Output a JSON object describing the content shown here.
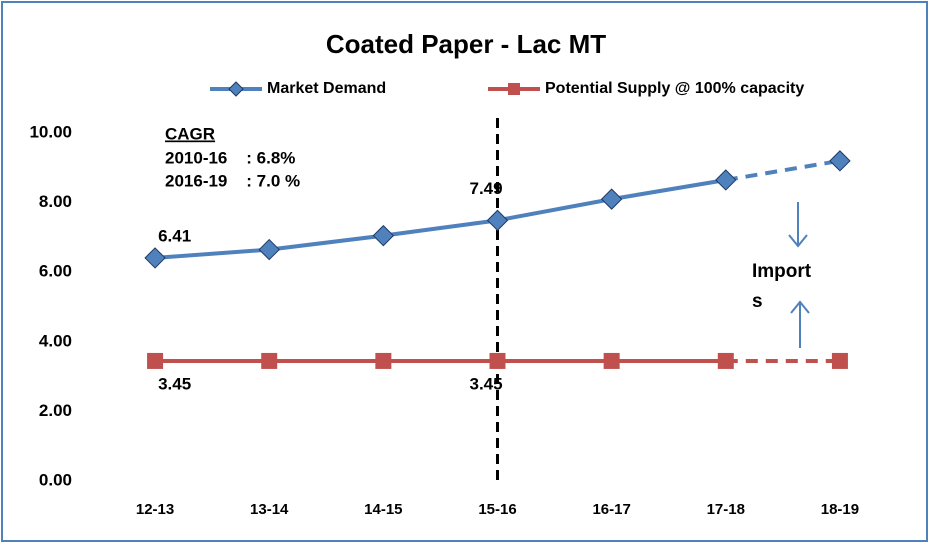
{
  "chart_data": {
    "type": "line",
    "title": "Coated Paper - Lac MT",
    "categories": [
      "12-13",
      "13-14",
      "14-15",
      "15-16",
      "16-17",
      "17-18",
      "18-19"
    ],
    "series": [
      {
        "name": "Market Demand",
        "color": "#4f81bd",
        "marker": "diamond",
        "values": [
          6.41,
          6.65,
          7.05,
          7.49,
          8.1,
          8.65,
          9.2
        ]
      },
      {
        "name": "Potential Supply @ 100% capacity",
        "color": "#c0504d",
        "marker": "square",
        "values": [
          3.45,
          3.45,
          3.45,
          3.45,
          3.45,
          3.45,
          3.45
        ]
      }
    ],
    "ylim": [
      0,
      10
    ],
    "yticks": [
      {
        "value": 0,
        "label": "0.00"
      },
      {
        "value": 2,
        "label": "2.00"
      },
      {
        "value": 4,
        "label": "4.00"
      },
      {
        "value": 6,
        "label": "6.00"
      },
      {
        "value": 8,
        "label": "8.00"
      },
      {
        "value": 10,
        "label": "10.00"
      }
    ],
    "grid": false,
    "legend": "top",
    "dashed_from_category": "17-18",
    "vline_at_category": "15-16",
    "data_label_categories": [
      "12-13",
      "15-16"
    ],
    "annotations": {
      "cagr_title": "CAGR",
      "cagr_lines": [
        "2010-16    : 6.8%",
        "2016-19    : 7.0 %"
      ],
      "imports_lines": [
        "Import",
        "s"
      ]
    }
  }
}
